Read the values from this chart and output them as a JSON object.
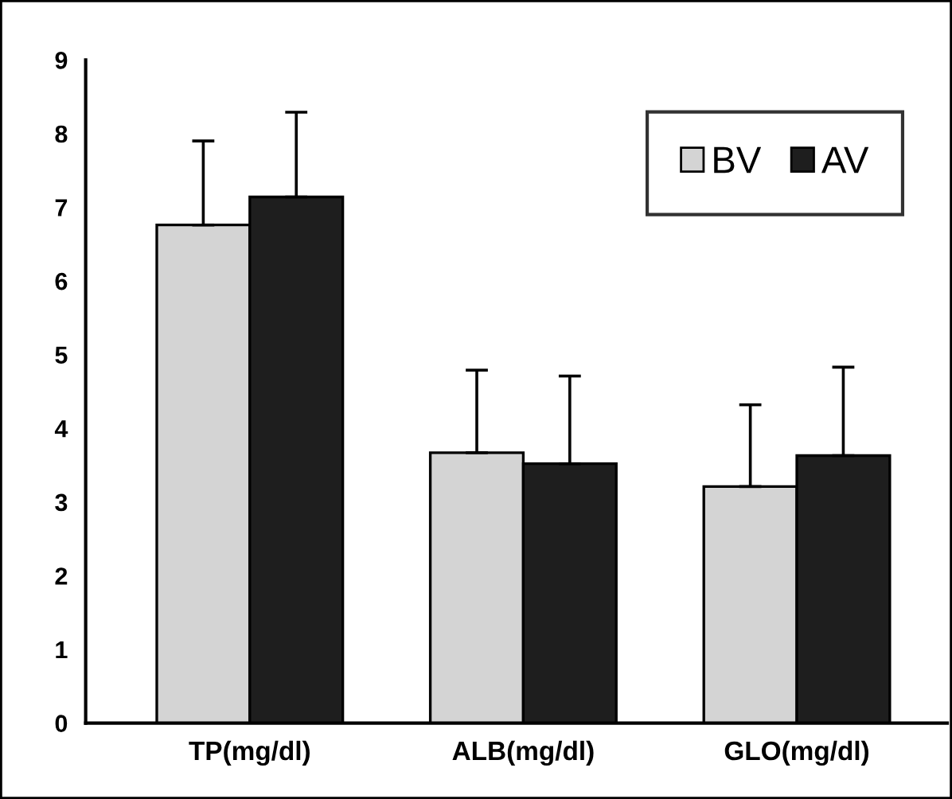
{
  "chart_data": {
    "type": "bar",
    "categories": [
      "TP(mg/dl)",
      "ALB(mg/dl)",
      "GLO(mg/dl)"
    ],
    "series": [
      {
        "name": "BV",
        "color": "#d4d4d4",
        "values": [
          6.76,
          3.67,
          3.21
        ],
        "errors": [
          1.14,
          1.12,
          1.11
        ]
      },
      {
        "name": "AV",
        "color": "#1e1e1e",
        "values": [
          7.14,
          3.52,
          3.63
        ],
        "errors": [
          1.15,
          1.19,
          1.2
        ]
      }
    ],
    "ylim": [
      0,
      9
    ],
    "yticks": [
      0,
      1,
      2,
      3,
      4,
      5,
      6,
      7,
      8,
      9
    ],
    "grid": false,
    "legend": "top right"
  }
}
